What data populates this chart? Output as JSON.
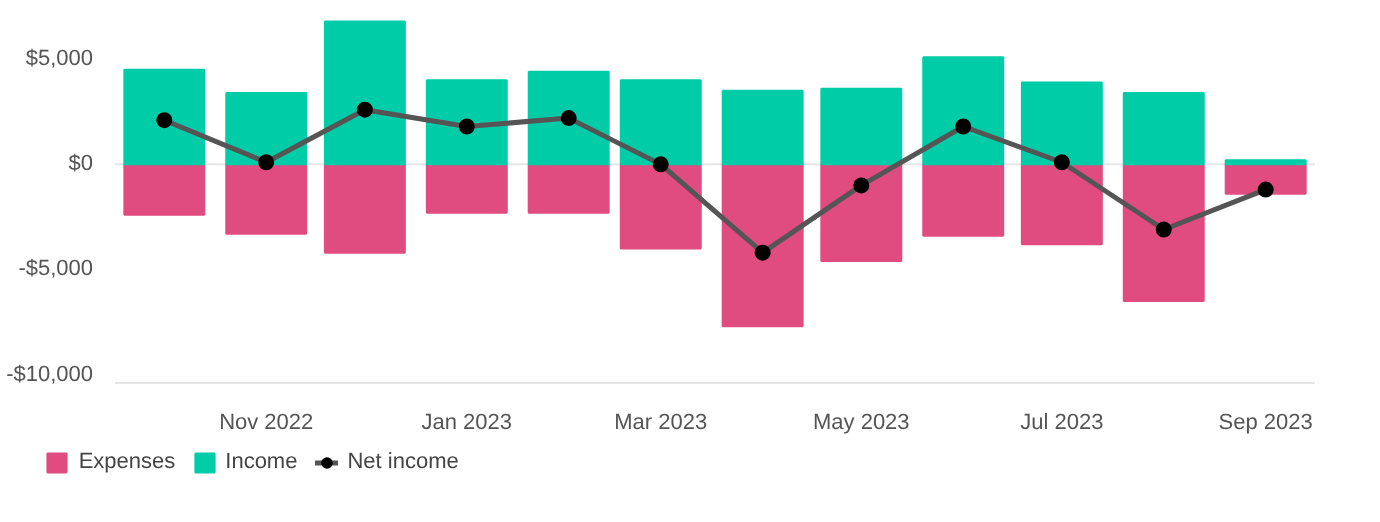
{
  "chart_data": {
    "type": "bar",
    "stacked": true,
    "x": [
      "2022-10",
      "2022-11",
      "2022-12",
      "2023-01",
      "2023-02",
      "2023-03",
      "2023-04",
      "2023-05",
      "2023-06",
      "2023-07",
      "2023-08",
      "2023-09"
    ],
    "series": [
      {
        "name": "Expenses",
        "color": "#e04c80",
        "values": [
          -2400,
          -3300,
          -4200,
          -2300,
          -2300,
          -4000,
          -7700,
          -4600,
          -3400,
          -3800,
          -6500,
          -1400
        ]
      },
      {
        "name": "Income",
        "color": "#00cca8",
        "values": [
          4500,
          3400,
          6800,
          4000,
          4400,
          4000,
          3500,
          3600,
          5100,
          3900,
          3400,
          200
        ]
      },
      {
        "name": "Net income",
        "type": "line",
        "color": "#555555",
        "marker": "circle",
        "values": [
          2100,
          100,
          2600,
          1800,
          2200,
          0,
          -4200,
          -1000,
          1800,
          100,
          -3100,
          -1200
        ]
      }
    ],
    "xlim": [
      "2022-09-16",
      "2023-09-16"
    ],
    "xticks": [
      {
        "value": "2022-11",
        "label": "Nov 2022"
      },
      {
        "value": "2023-01",
        "label": "Jan 2023"
      },
      {
        "value": "2023-03",
        "label": "Mar 2023"
      },
      {
        "value": "2023-05",
        "label": "May 2023"
      },
      {
        "value": "2023-07",
        "label": "Jul 2023"
      },
      {
        "value": "2023-09",
        "label": "Sep 2023"
      }
    ],
    "ylim": [
      -10400,
      7200
    ],
    "yticks": [
      {
        "value": 5000,
        "label": "$5,000"
      },
      {
        "value": 0,
        "label": "$0"
      },
      {
        "value": -5000,
        "label": "-$5,000"
      },
      {
        "value": -10000,
        "label": "-$10,000"
      }
    ],
    "ref_lines": [
      {
        "axis": "y",
        "value": 0,
        "color": "#e6e6e6"
      }
    ],
    "grid": false,
    "legend": "bottom left"
  }
}
